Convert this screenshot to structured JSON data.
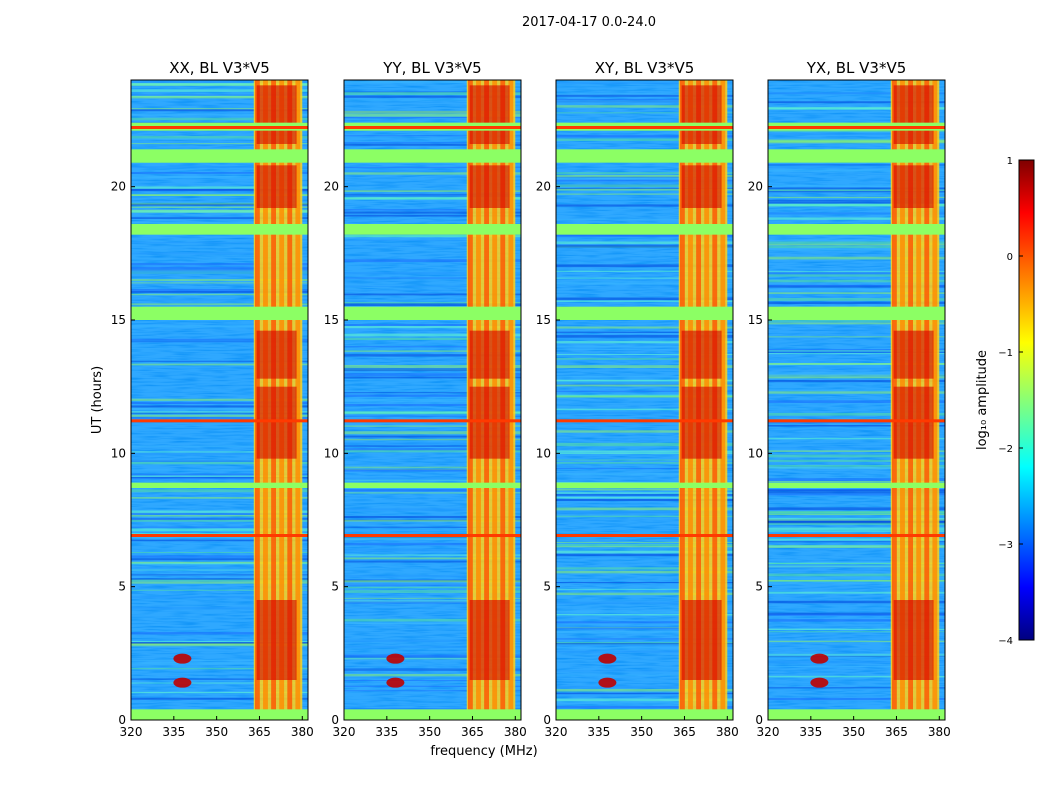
{
  "chart_data": {
    "type": "heatmap",
    "suptitle": "2017-04-17 0.0-24.0",
    "xlabel": "frequency (MHz)",
    "ylabel": "UT (hours)",
    "xlim": [
      320,
      382
    ],
    "ylim": [
      0,
      24
    ],
    "xticks": [
      "320",
      "335",
      "350",
      "365",
      "380"
    ],
    "yticks": [
      "0",
      "5",
      "10",
      "15",
      "20"
    ],
    "panels": [
      {
        "title": "XX, BL V3*V5"
      },
      {
        "title": "YY, BL V3*V5"
      },
      {
        "title": "XY, BL V3*V5"
      },
      {
        "title": "YX, BL V3*V5"
      }
    ],
    "colorbar": {
      "label": "log₁₀ amplitude",
      "range": [
        -4,
        1
      ],
      "ticks": [
        "−4",
        "−3",
        "−2",
        "−1",
        "0",
        "1"
      ],
      "colormap": "jet"
    },
    "features": {
      "rfi_band_mhz": [
        363,
        380
      ],
      "flagged_rows_ut": [
        [
          0.0,
          0.4
        ],
        [
          8.7,
          8.9
        ],
        [
          15.0,
          15.5
        ],
        [
          18.2,
          18.6
        ],
        [
          20.9,
          21.4
        ],
        [
          22.1,
          22.4
        ]
      ],
      "bright_row_ut": [
        6.9,
        11.2,
        22.2
      ],
      "hotspot_ut": [
        1.4,
        2.3
      ],
      "hotspot_freq_mhz": 338
    }
  }
}
